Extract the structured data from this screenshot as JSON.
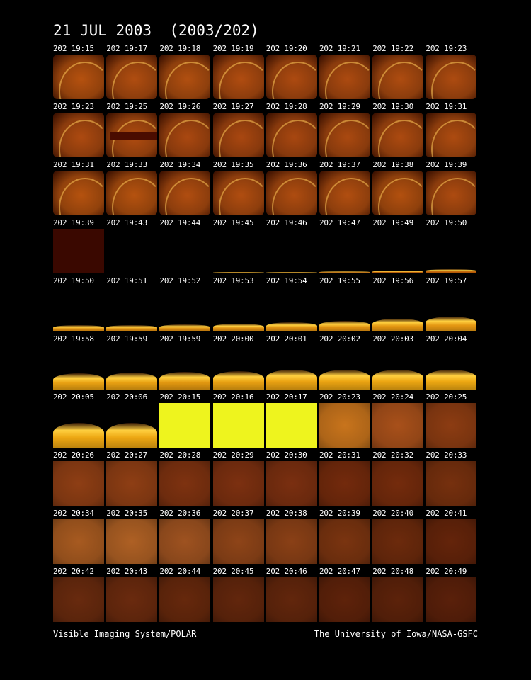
{
  "title": "21 JUL 2003  (2003/202)",
  "footer": {
    "left": "Visible Imaging System/POLAR",
    "right": "The University of Iowa/NASA-GSFC"
  },
  "frames": [
    {
      "label": "202 19:15",
      "kind": "disk",
      "color": "#b5510f"
    },
    {
      "label": "202 19:17",
      "kind": "disk",
      "color": "#b04d10"
    },
    {
      "label": "202 19:18",
      "kind": "disk",
      "color": "#b14f10"
    },
    {
      "label": "202 19:19",
      "kind": "disk",
      "color": "#b04c10"
    },
    {
      "label": "202 19:20",
      "kind": "disk",
      "color": "#ad4a10"
    },
    {
      "label": "202 19:21",
      "kind": "disk",
      "color": "#ac4a10"
    },
    {
      "label": "202 19:22",
      "kind": "disk",
      "color": "#ae4c10"
    },
    {
      "label": "202 19:23",
      "kind": "disk",
      "color": "#ad4b10"
    },
    {
      "label": "202 19:23",
      "kind": "disk",
      "color": "#ad4a10"
    },
    {
      "label": "202 19:25",
      "kind": "disk-gap",
      "color": "#b04c10"
    },
    {
      "label": "202 19:26",
      "kind": "disk",
      "color": "#aa4810"
    },
    {
      "label": "202 19:27",
      "kind": "disk",
      "color": "#a94710"
    },
    {
      "label": "202 19:28",
      "kind": "disk",
      "color": "#a84710"
    },
    {
      "label": "202 19:29",
      "kind": "disk",
      "color": "#aa4910"
    },
    {
      "label": "202 19:30",
      "kind": "disk",
      "color": "#ac4a10"
    },
    {
      "label": "202 19:31",
      "kind": "disk",
      "color": "#ad4b10"
    },
    {
      "label": "202 19:31",
      "kind": "disk",
      "color": "#b5520f"
    },
    {
      "label": "202 19:33",
      "kind": "disk",
      "color": "#b5520f"
    },
    {
      "label": "202 19:34",
      "kind": "disk",
      "color": "#b04d10"
    },
    {
      "label": "202 19:35",
      "kind": "disk",
      "color": "#b04d10"
    },
    {
      "label": "202 19:36",
      "kind": "disk",
      "color": "#ae4c10"
    },
    {
      "label": "202 19:37",
      "kind": "disk",
      "color": "#b14e10"
    },
    {
      "label": "202 19:38",
      "kind": "disk",
      "color": "#b2500f"
    },
    {
      "label": "202 19:39",
      "kind": "disk",
      "color": "#ad4b10"
    },
    {
      "label": "202 19:39",
      "kind": "solid",
      "color": "#3a0800"
    },
    {
      "label": "202 19:43",
      "kind": "empty",
      "color": "#000"
    },
    {
      "label": "202 19:44",
      "kind": "empty",
      "color": "#000"
    },
    {
      "label": "202 19:45",
      "kind": "edge",
      "color": "#8a3a05",
      "level": 0.02
    },
    {
      "label": "202 19:46",
      "kind": "edge",
      "color": "#8a3a05",
      "level": 0.03
    },
    {
      "label": "202 19:47",
      "kind": "edge",
      "color": "#a24c08",
      "level": 0.05
    },
    {
      "label": "202 19:49",
      "kind": "edge",
      "color": "#b65a08",
      "level": 0.07
    },
    {
      "label": "202 19:50",
      "kind": "edge",
      "color": "#c06008",
      "level": 0.09
    },
    {
      "label": "202 19:50",
      "kind": "edge",
      "color": "#d98a10",
      "level": 0.14
    },
    {
      "label": "202 19:51",
      "kind": "edge",
      "color": "#d98a10",
      "level": 0.15
    },
    {
      "label": "202 19:52",
      "kind": "edge",
      "color": "#d98a10",
      "level": 0.16
    },
    {
      "label": "202 19:53",
      "kind": "edge",
      "color": "#db8c10",
      "level": 0.18
    },
    {
      "label": "202 19:54",
      "kind": "edge",
      "color": "#dc8e10",
      "level": 0.2
    },
    {
      "label": "202 19:55",
      "kind": "edge",
      "color": "#df9010",
      "level": 0.24
    },
    {
      "label": "202 19:56",
      "kind": "edge",
      "color": "#e29410",
      "level": 0.28
    },
    {
      "label": "202 19:57",
      "kind": "edge",
      "color": "#e49612",
      "level": 0.34
    },
    {
      "label": "202 19:58",
      "kind": "edge",
      "color": "#e8a012",
      "level": 0.36
    },
    {
      "label": "202 19:59",
      "kind": "edge",
      "color": "#e8a012",
      "level": 0.38
    },
    {
      "label": "202 19:59",
      "kind": "edge",
      "color": "#e39810",
      "level": 0.4
    },
    {
      "label": "202 20:00",
      "kind": "edge",
      "color": "#e8a012",
      "level": 0.42
    },
    {
      "label": "202 20:01",
      "kind": "edge",
      "color": "#eaa212",
      "level": 0.45
    },
    {
      "label": "202 20:02",
      "kind": "edge",
      "color": "#eba412",
      "level": 0.45
    },
    {
      "label": "202 20:03",
      "kind": "edge",
      "color": "#eca612",
      "level": 0.45
    },
    {
      "label": "202 20:04",
      "kind": "edge",
      "color": "#eda812",
      "level": 0.45
    },
    {
      "label": "202 20:05",
      "kind": "edge",
      "color": "#eca612",
      "level": 0.55
    },
    {
      "label": "202 20:06",
      "kind": "edge",
      "color": "#eca612",
      "level": 0.55
    },
    {
      "label": "202 20:15",
      "kind": "solid",
      "color": "#eef41e"
    },
    {
      "label": "202 20:16",
      "kind": "solid",
      "color": "#eef41e"
    },
    {
      "label": "202 20:17",
      "kind": "solid",
      "color": "#eef41e"
    },
    {
      "label": "202 20:23",
      "kind": "fill",
      "color": "#c8741c"
    },
    {
      "label": "202 20:24",
      "kind": "fill",
      "color": "#a8501a"
    },
    {
      "label": "202 20:25",
      "kind": "fill",
      "color": "#8c3c12"
    },
    {
      "label": "202 20:26",
      "kind": "fill",
      "color": "#8e3e14"
    },
    {
      "label": "202 20:27",
      "kind": "fill",
      "color": "#8e3e14"
    },
    {
      "label": "202 20:28",
      "kind": "fill",
      "color": "#7e3210"
    },
    {
      "label": "202 20:29",
      "kind": "fill",
      "color": "#7c3010"
    },
    {
      "label": "202 20:30",
      "kind": "fill",
      "color": "#7a2f10"
    },
    {
      "label": "202 20:31",
      "kind": "fill",
      "color": "#732a0c"
    },
    {
      "label": "202 20:32",
      "kind": "fill",
      "color": "#742b0c"
    },
    {
      "label": "202 20:33",
      "kind": "fill",
      "color": "#76300e"
    },
    {
      "label": "202 20:34",
      "kind": "fill",
      "color": "#a75a20"
    },
    {
      "label": "202 20:35",
      "kind": "fill",
      "color": "#ae6024"
    },
    {
      "label": "202 20:36",
      "kind": "fill",
      "color": "#9e5220"
    },
    {
      "label": "202 20:37",
      "kind": "fill",
      "color": "#8e4418"
    },
    {
      "label": "202 20:38",
      "kind": "fill",
      "color": "#8a4016"
    },
    {
      "label": "202 20:39",
      "kind": "fill",
      "color": "#7a3410"
    },
    {
      "label": "202 20:40",
      "kind": "fill",
      "color": "#6c2a0c"
    },
    {
      "label": "202 20:41",
      "kind": "fill",
      "color": "#64240a"
    },
    {
      "label": "202 20:42",
      "kind": "fill",
      "color": "#682a0e"
    },
    {
      "label": "202 20:43",
      "kind": "fill",
      "color": "#6a2a0e"
    },
    {
      "label": "202 20:44",
      "kind": "fill",
      "color": "#66280c"
    },
    {
      "label": "202 20:45",
      "kind": "fill",
      "color": "#62260c"
    },
    {
      "label": "202 20:46",
      "kind": "fill",
      "color": "#62260c"
    },
    {
      "label": "202 20:47",
      "kind": "fill",
      "color": "#5e220a"
    },
    {
      "label": "202 20:48",
      "kind": "fill",
      "color": "#5c220a"
    },
    {
      "label": "202 20:49",
      "kind": "fill",
      "color": "#5a200a"
    }
  ]
}
